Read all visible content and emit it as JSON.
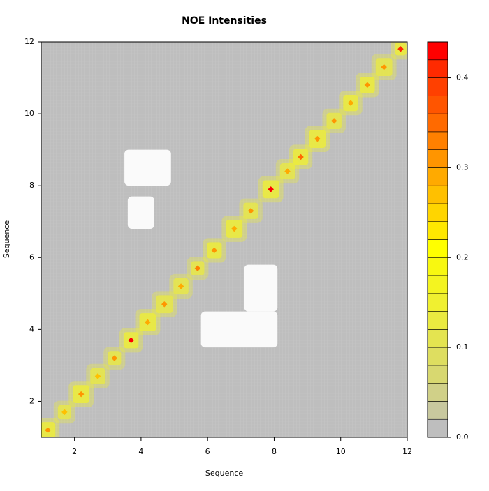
{
  "chart_data": {
    "type": "heatmap",
    "title": "NOE Intensities",
    "x_label": "Sequence",
    "y_label": "Sequence",
    "xlim": [
      1,
      12
    ],
    "ylim": [
      1,
      12
    ],
    "xticks": [
      2,
      4,
      6,
      8,
      10,
      12
    ],
    "yticks": [
      2,
      4,
      6,
      8,
      10,
      12
    ],
    "background_value": 0,
    "block_centers": [
      1.2,
      1.7,
      2.2,
      2.7,
      3.2,
      3.7,
      4.2,
      4.7,
      5.2,
      5.7,
      6.2,
      6.8,
      7.3,
      7.9,
      8.4,
      8.8,
      9.3,
      9.8,
      10.3,
      10.8,
      11.3,
      11.8
    ],
    "block_widths": [
      0.45,
      0.4,
      0.5,
      0.45,
      0.4,
      0.45,
      0.5,
      0.5,
      0.45,
      0.4,
      0.45,
      0.5,
      0.45,
      0.5,
      0.45,
      0.45,
      0.5,
      0.45,
      0.45,
      0.45,
      0.5,
      0.35
    ],
    "block_values": [
      0.14,
      0.12,
      0.14,
      0.12,
      0.12,
      0.14,
      0.14,
      0.12,
      0.12,
      0.12,
      0.14,
      0.14,
      0.12,
      0.14,
      0.12,
      0.14,
      0.14,
      0.12,
      0.14,
      0.14,
      0.12,
      0.14
    ],
    "peak_values": [
      0.3,
      0.26,
      0.3,
      0.26,
      0.3,
      0.44,
      0.28,
      0.3,
      0.28,
      0.32,
      0.3,
      0.28,
      0.3,
      0.42,
      0.28,
      0.34,
      0.3,
      0.3,
      0.28,
      0.3,
      0.3,
      0.4
    ],
    "missing_regions": [
      [
        3.5,
        4.9,
        8.0,
        9.0
      ],
      [
        3.6,
        4.4,
        6.8,
        7.7
      ],
      [
        5.8,
        8.1,
        3.5,
        4.5
      ],
      [
        7.1,
        8.1,
        4.5,
        5.8
      ]
    ],
    "zlim": [
      0,
      0.44
    ],
    "zticks": [
      {
        "value": 0,
        "label": "0.0"
      },
      0.1,
      0.2,
      0.3,
      0.4
    ],
    "colors": [
      "#bebebe",
      "#c8c89e",
      "#d0d088",
      "#d8d870",
      "#dede60",
      "#e4e450",
      "#eaea40",
      "#f0f030",
      "#f4f420",
      "#f8f810",
      "#ffff00",
      "#ffe800",
      "#ffd500",
      "#ffc000",
      "#ffaa00",
      "#ff9500",
      "#ff8000",
      "#ff6a00",
      "#ff5500",
      "#ff4000",
      "#ff2a00",
      "#ff0000"
    ]
  }
}
